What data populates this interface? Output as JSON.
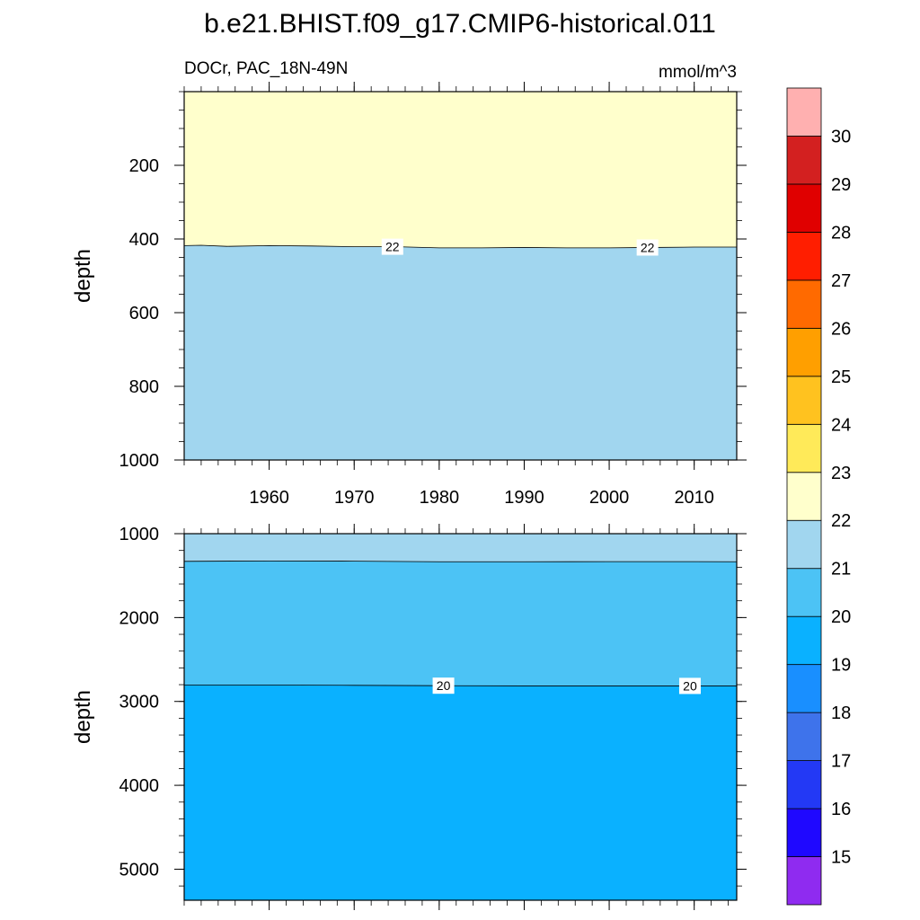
{
  "title": "b.e21.BHIST.f09_g17.CMIP6-historical.011",
  "variable_label": "DOCr, PAC_18N-49N",
  "units_label": "mmol/m^3",
  "chart_data": [
    {
      "type": "contour",
      "panel": "upper",
      "ylabel": "depth",
      "xlabel": "",
      "xlim": [
        1950,
        2015
      ],
      "ylim": [
        1000,
        0
      ],
      "x_ticks": [
        1960,
        1970,
        1980,
        1990,
        2000,
        2010
      ],
      "y_ticks": [
        200,
        400,
        600,
        800,
        1000
      ],
      "bands": [
        {
          "range": [
            22,
            23
          ],
          "color": "#FFFFCC"
        },
        {
          "range": [
            21,
            22
          ],
          "color": "#A1D6EF"
        }
      ],
      "contours": [
        {
          "level": 22,
          "label": "22",
          "x": [
            1950,
            1952,
            1955,
            1960,
            1965,
            1970,
            1975,
            1980,
            1985,
            1990,
            1995,
            2000,
            2005,
            2010,
            2015
          ],
          "y": [
            418,
            417,
            420,
            418,
            419,
            421,
            421,
            424,
            424,
            423,
            424,
            424,
            423,
            422,
            422
          ],
          "label_x": [
            1974.5,
            2004.5
          ]
        }
      ]
    },
    {
      "type": "contour",
      "panel": "lower",
      "ylabel": "depth",
      "xlabel": "",
      "xlim": [
        1950,
        2015
      ],
      "ylim": [
        5370,
        1000
      ],
      "x_ticks": [
        1960,
        1970,
        1980,
        1990,
        2000,
        2010
      ],
      "y_ticks": [
        1000,
        2000,
        3000,
        4000,
        5000
      ],
      "bands": [
        {
          "range": [
            21,
            22
          ],
          "color": "#A1D6EF"
        },
        {
          "range": [
            20,
            21
          ],
          "color": "#4CC3F5"
        },
        {
          "range": [
            19,
            20
          ],
          "color": "#0AB1FF"
        }
      ],
      "contours": [
        {
          "level": 21,
          "label": "",
          "x": [
            1950,
            1960,
            1970,
            1980,
            1990,
            2000,
            2010,
            2015
          ],
          "y": [
            1330,
            1325,
            1328,
            1335,
            1335,
            1333,
            1333,
            1335
          ],
          "label_x": []
        },
        {
          "level": 20,
          "label": "20",
          "x": [
            1950,
            1960,
            1970,
            1980,
            1990,
            2000,
            2010,
            2015
          ],
          "y": [
            2805,
            2805,
            2808,
            2812,
            2815,
            2815,
            2815,
            2815
          ],
          "label_x": [
            1980.5,
            2009.5
          ]
        }
      ]
    }
  ],
  "colorbar": {
    "label_levels": [
      "15",
      "16",
      "17",
      "18",
      "19",
      "20",
      "21",
      "22",
      "23",
      "24",
      "25",
      "26",
      "27",
      "28",
      "29",
      "30"
    ],
    "colors": [
      "#8F2BF0",
      "#1F08FF",
      "#2339F5",
      "#3E73EB",
      "#198FFF",
      "#0AB1FF",
      "#4CC3F5",
      "#A1D6EF",
      "#FFFFCC",
      "#FFEA59",
      "#FFC21F",
      "#FF9F00",
      "#FF6A00",
      "#FF1E00",
      "#E00000",
      "#D32020",
      "#FFB0B0"
    ]
  }
}
